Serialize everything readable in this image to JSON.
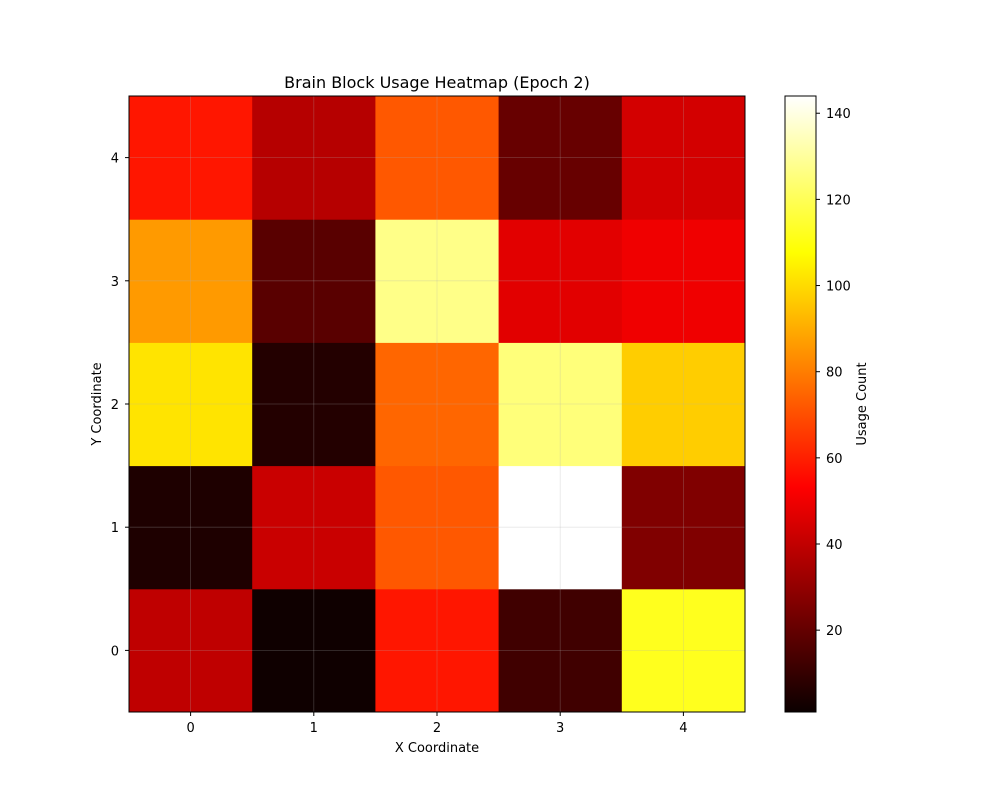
{
  "chart_data": {
    "type": "heatmap",
    "title": "Brain Block Usage Heatmap (Epoch 2)",
    "xlabel": "X Coordinate",
    "ylabel": "Y Coordinate",
    "x": [
      0,
      1,
      2,
      3,
      4
    ],
    "y": [
      0,
      1,
      2,
      3,
      4
    ],
    "values": [
      [
        38,
        2,
        58,
        12,
        112
      ],
      [
        5,
        40,
        72,
        145,
        25
      ],
      [
        102,
        6,
        75,
        125,
        97
      ],
      [
        86,
        17,
        127,
        45,
        48
      ],
      [
        58,
        36,
        72,
        20,
        42
      ]
    ],
    "colormap": "hot",
    "clim": [
      1,
      144
    ],
    "grid": true,
    "colorbar": {
      "label": "Usage Count",
      "ticks": [
        20,
        40,
        60,
        80,
        100,
        120,
        140
      ]
    }
  }
}
